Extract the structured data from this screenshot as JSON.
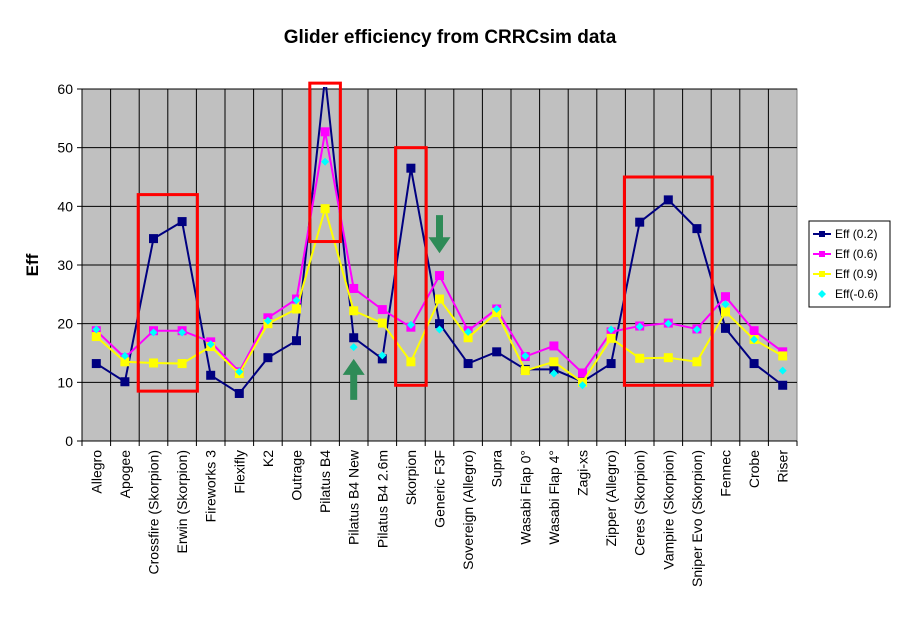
{
  "chart_data": {
    "type": "line",
    "title": "Glider efficiency from CRRCsim data",
    "xlabel": "",
    "ylabel": "Eff",
    "ylim": [
      0,
      60
    ],
    "yticks": [
      0,
      10,
      20,
      30,
      40,
      50,
      60
    ],
    "grid": true,
    "legend_position": "right",
    "plot_background": "#c0c0c0",
    "categories": [
      "Allegro",
      "Apogee",
      "Crossfire (Skorpion)",
      "Erwin (Skorpion)",
      "Fireworks 3",
      "Flexifly",
      "K2",
      "Outrage",
      "Pilatus B4",
      "Pilatus B4 New",
      "Pilatus B4 2.6m",
      "Skorpion",
      "Generic F3F",
      "Sovereign (Allegro)",
      "Supra",
      "Wasabi Flap 0°",
      "Wasabi Flap 4°",
      "Zagi-xs",
      "Zipper (Allegro)",
      "Ceres (Skorpion)",
      "Vampire (Skorpion)",
      "Sniper Evo (Skorpion)",
      "Fennec",
      "Crobe",
      "Riser"
    ],
    "series": [
      {
        "name": "Eff (0.2)",
        "color": "#000080",
        "marker": "square",
        "line": true,
        "values": [
          13.2,
          10.1,
          34.5,
          37.4,
          11.2,
          8.1,
          14.2,
          17.1,
          62.0,
          17.6,
          14.0,
          46.5,
          20.0,
          13.2,
          15.2,
          12.2,
          12.2,
          10.1,
          13.2,
          37.3,
          41.1,
          36.2,
          19.2,
          13.2,
          9.5
        ]
      },
      {
        "name": "Eff (0.6)",
        "color": "#ff00ff",
        "marker": "square",
        "line": true,
        "values": [
          18.8,
          14.2,
          18.8,
          18.8,
          16.9,
          11.8,
          21.0,
          24.2,
          52.7,
          26.0,
          22.4,
          19.4,
          28.2,
          18.8,
          22.5,
          14.4,
          16.2,
          11.6,
          18.6,
          19.6,
          20.1,
          19.1,
          24.6,
          18.8,
          15.2
        ]
      },
      {
        "name": "Eff (0.9)",
        "color": "#ffff00",
        "marker": "square",
        "line": true,
        "values": [
          17.8,
          13.5,
          13.3,
          13.2,
          16.1,
          11.5,
          20.0,
          22.5,
          39.6,
          22.2,
          20.1,
          13.5,
          24.2,
          17.6,
          21.9,
          12.0,
          13.5,
          10.0,
          17.5,
          14.1,
          14.2,
          13.5,
          22.0,
          17.3,
          14.5
        ]
      },
      {
        "name": "Eff(-0.6)",
        "color": "#00ffff",
        "marker": "diamond",
        "line": false,
        "values": [
          19.0,
          14.5,
          18.5,
          18.5,
          16.5,
          11.8,
          20.5,
          24.0,
          47.6,
          16.0,
          14.6,
          19.8,
          19.0,
          18.6,
          22.5,
          14.5,
          11.5,
          9.5,
          19.0,
          19.5,
          20.0,
          19.0,
          23.3,
          17.3,
          12.0
        ]
      }
    ],
    "annotations": [
      {
        "kind": "highlight-box",
        "color": "#ff0000",
        "from": "Crossfire (Skorpion)",
        "to": "Erwin (Skorpion)",
        "ymin": 8.5,
        "ymax": 42
      },
      {
        "kind": "highlight-box",
        "color": "#ff0000",
        "from": "Pilatus B4",
        "to": "Pilatus B4",
        "ymin": 34,
        "ymax": 61
      },
      {
        "kind": "highlight-box",
        "color": "#ff0000",
        "from": "Skorpion",
        "to": "Skorpion",
        "ymin": 9.5,
        "ymax": 50
      },
      {
        "kind": "highlight-box",
        "color": "#ff0000",
        "from": "Ceres (Skorpion)",
        "to": "Sniper Evo (Skorpion)",
        "ymin": 9.5,
        "ymax": 45
      },
      {
        "kind": "arrow",
        "direction": "up",
        "color": "#2e8b57",
        "at": "Pilatus B4 New",
        "ymin": 7,
        "ymax": 14
      },
      {
        "kind": "arrow",
        "direction": "down",
        "color": "#2e8b57",
        "at": "Generic F3F",
        "ymin": 32,
        "ymax": 38.5
      }
    ]
  }
}
